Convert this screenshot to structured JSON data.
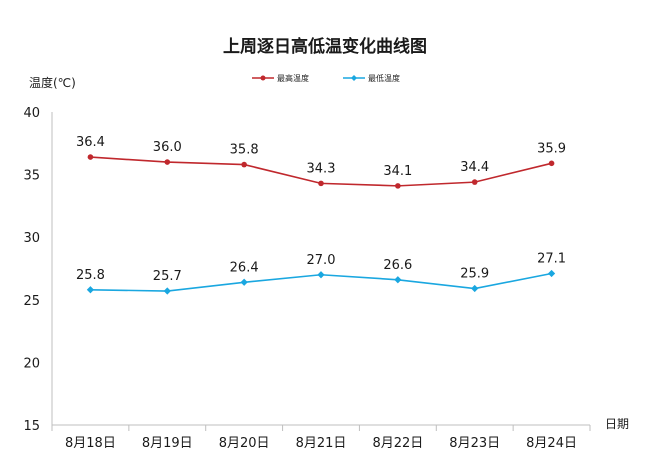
{
  "chart_data": {
    "type": "line",
    "title": "上周逐日高低温变化曲线图",
    "ylabel": "温度(℃)",
    "xlabel": "日期",
    "categories": [
      "8月18日",
      "8月19日",
      "8月20日",
      "8月21日",
      "8月22日",
      "8月23日",
      "8月24日"
    ],
    "ylim": [
      15,
      40
    ],
    "yticks": [
      "15",
      "20",
      "25",
      "30",
      "35",
      "40"
    ],
    "grid": false,
    "legend_position": "top",
    "series": [
      {
        "name": "最高温度",
        "values": [
          36.4,
          36.0,
          35.8,
          34.3,
          34.1,
          34.4,
          35.9
        ],
        "labels": [
          "36.4",
          "36.0",
          "35.8",
          "34.3",
          "34.1",
          "34.4",
          "35.9"
        ],
        "color": "#c0282d",
        "marker": "circle"
      },
      {
        "name": "最低温度",
        "values": [
          25.8,
          25.7,
          26.4,
          27.0,
          26.6,
          25.9,
          27.1
        ],
        "labels": [
          "25.8",
          "25.7",
          "26.4",
          "27.0",
          "26.6",
          "25.9",
          "27.1"
        ],
        "color": "#1aa7e0",
        "marker": "diamond"
      }
    ]
  }
}
